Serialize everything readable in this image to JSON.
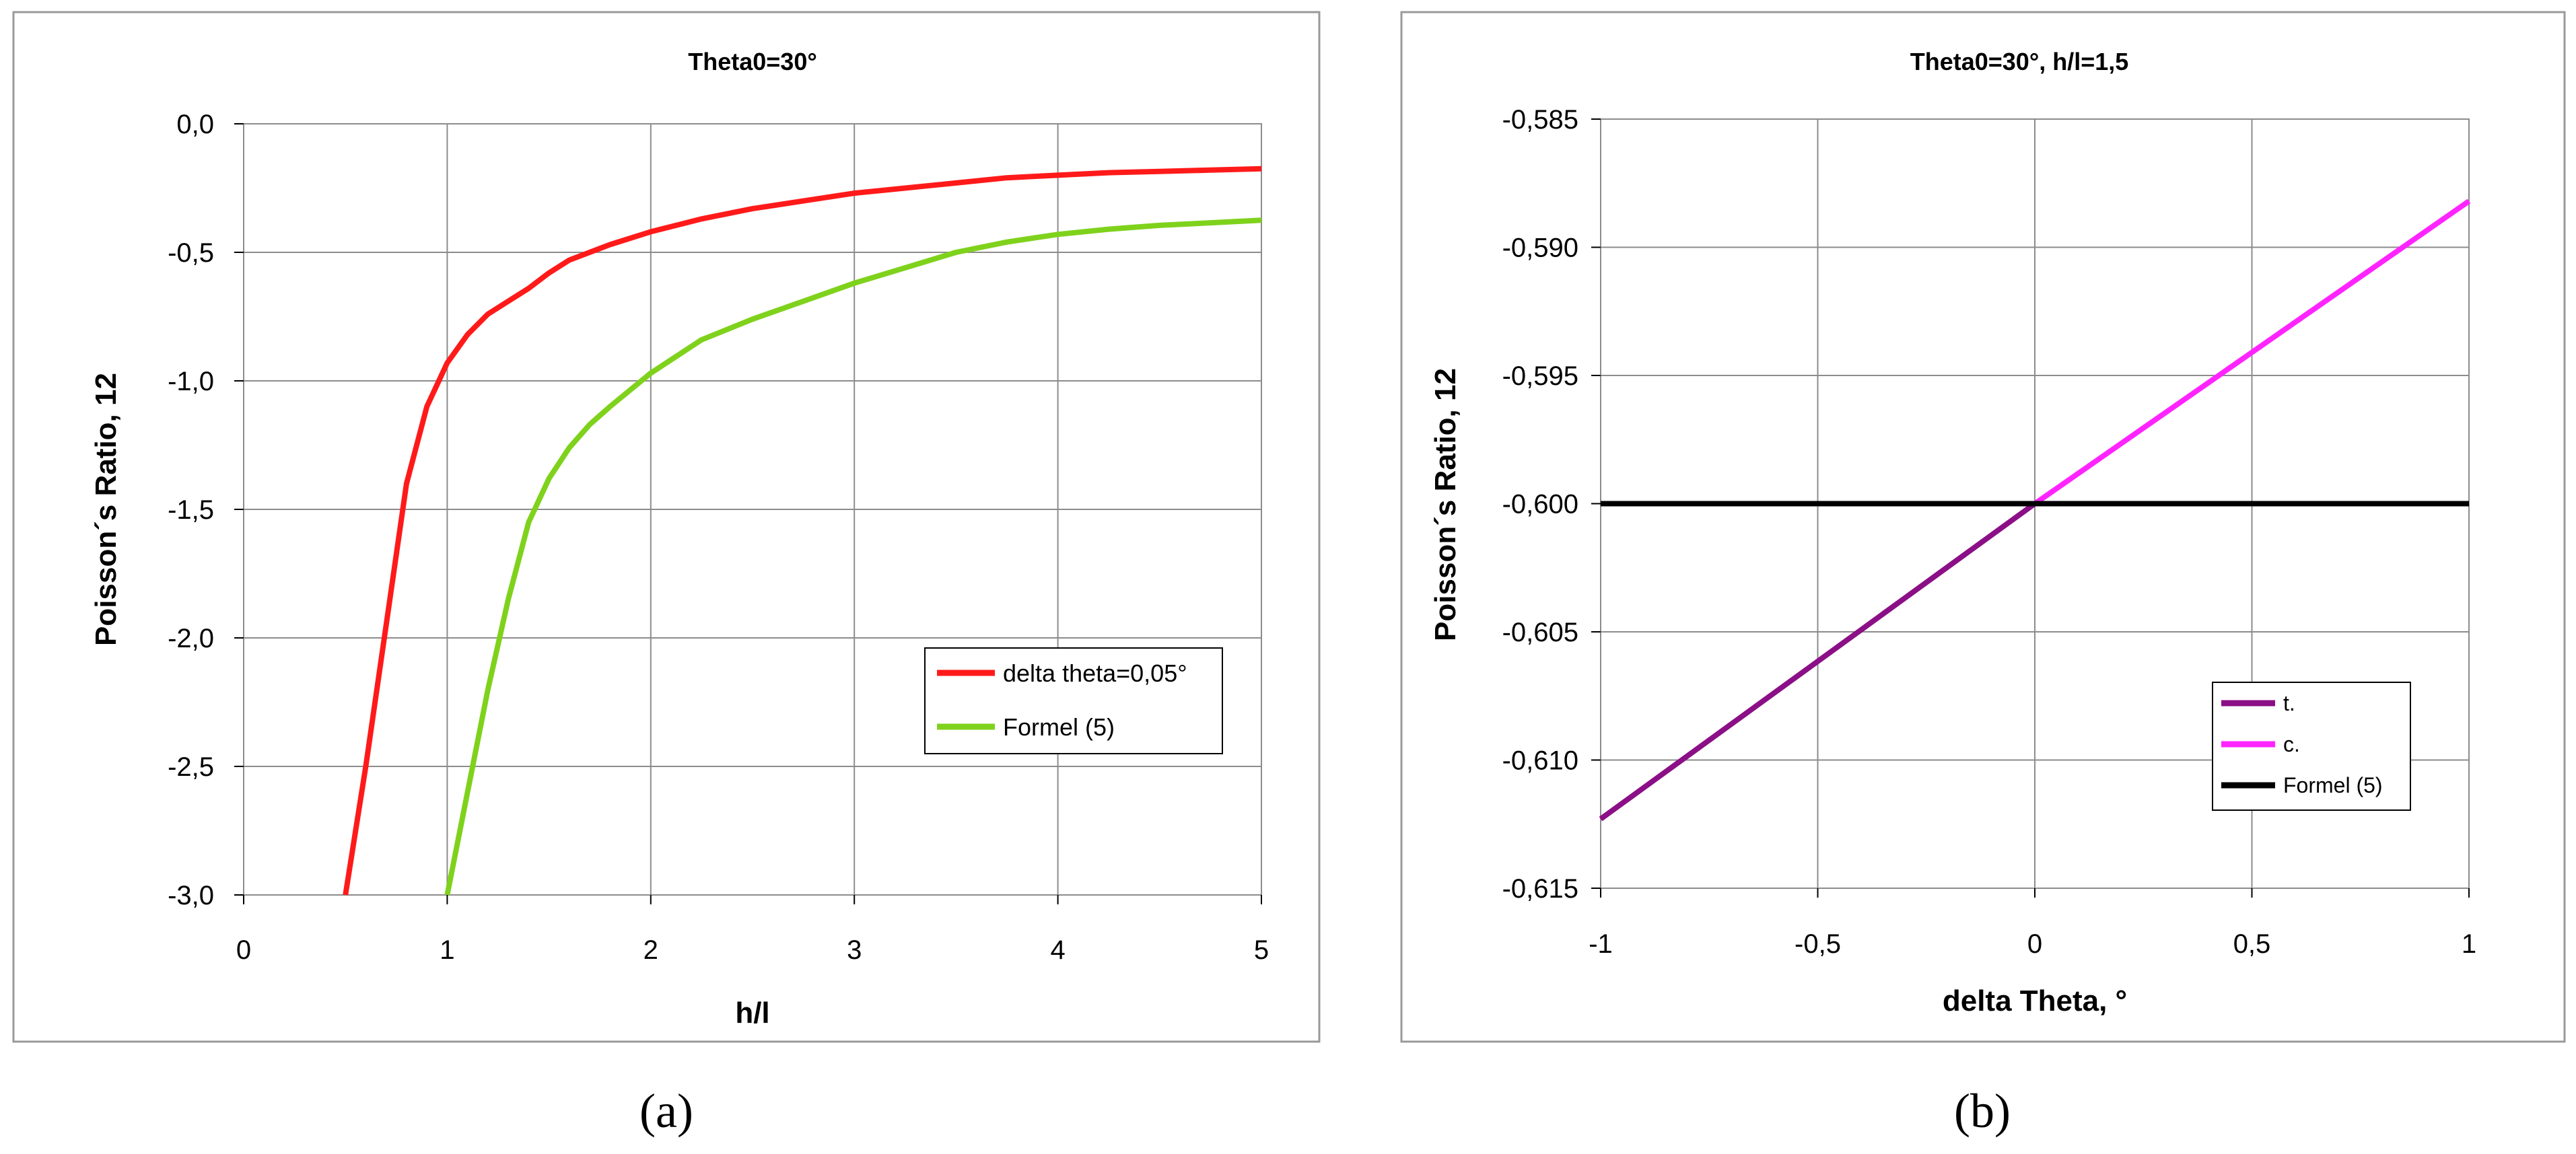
{
  "panels": [
    {
      "label": "(a)",
      "chart_data": {
        "type": "line",
        "title": "Theta0=30°",
        "xlabel": "h/l",
        "ylabel": "Poisson´s Ratio, 12",
        "xlim": [
          0,
          5
        ],
        "ylim": [
          -3.0,
          0.0
        ],
        "xticks": [
          0,
          1,
          2,
          3,
          4,
          5
        ],
        "xtick_labels": [
          "0",
          "1",
          "2",
          "3",
          "4",
          "5"
        ],
        "yticks": [
          0.0,
          -0.5,
          -1.0,
          -1.5,
          -2.0,
          -2.5,
          -3.0
        ],
        "ytick_labels": [
          "0,0",
          "-0,5",
          "-1,0",
          "-1,5",
          "-2,0",
          "-2,5",
          "-3,0"
        ],
        "grid": true,
        "legend_position": "lower-right",
        "series": [
          {
            "name": "delta theta=0,05°",
            "color": "#ff1a1a",
            "x": [
              0.5,
              0.6,
              0.7,
              0.8,
              0.9,
              1.0,
              1.1,
              1.2,
              1.3,
              1.4,
              1.5,
              1.6,
              1.8,
              2.0,
              2.25,
              2.5,
              2.75,
              3.0,
              3.25,
              3.5,
              3.75,
              4.0,
              4.25,
              4.5,
              4.75,
              5.0
            ],
            "y": [
              -3.0,
              -2.5,
              -1.95,
              -1.4,
              -1.1,
              -0.93,
              -0.82,
              -0.74,
              -0.69,
              -0.64,
              -0.58,
              -0.53,
              -0.47,
              -0.42,
              -0.37,
              -0.33,
              -0.3,
              -0.27,
              -0.25,
              -0.23,
              -0.21,
              -0.2,
              -0.19,
              -0.185,
              -0.18,
              -0.175
            ]
          },
          {
            "name": "Formel (5)",
            "color": "#7fd21c",
            "x": [
              1.0,
              1.1,
              1.2,
              1.3,
              1.4,
              1.5,
              1.6,
              1.7,
              1.8,
              2.0,
              2.25,
              2.5,
              2.75,
              3.0,
              3.25,
              3.5,
              3.75,
              4.0,
              4.25,
              4.5,
              4.75,
              5.0
            ],
            "y": [
              -3.0,
              -2.6,
              -2.2,
              -1.85,
              -1.55,
              -1.38,
              -1.26,
              -1.17,
              -1.1,
              -0.97,
              -0.84,
              -0.76,
              -0.69,
              -0.62,
              -0.56,
              -0.5,
              -0.46,
              -0.43,
              -0.41,
              -0.395,
              -0.385,
              -0.375
            ]
          }
        ]
      }
    },
    {
      "label": "(b)",
      "chart_data": {
        "type": "line",
        "title": "Theta0=30°, h/l=1,5",
        "xlabel": "delta Theta, °",
        "ylabel": "Poisson´s Ratio, 12",
        "xlim": [
          -1,
          1
        ],
        "ylim": [
          -0.615,
          -0.585
        ],
        "xticks": [
          -1,
          -0.5,
          0,
          0.5,
          1
        ],
        "xtick_labels": [
          "-1",
          "-0,5",
          "0",
          "0,5",
          "1"
        ],
        "yticks": [
          -0.585,
          -0.59,
          -0.595,
          -0.6,
          -0.605,
          -0.61,
          -0.615
        ],
        "ytick_labels": [
          "-0,585",
          "-0,590",
          "-0,595",
          "-0,600",
          "-0,605",
          "-0,610",
          "-0,615"
        ],
        "grid": true,
        "legend_position": "lower-right",
        "series": [
          {
            "name": "t.",
            "color": "#8b0f86",
            "x": [
              -1.0,
              0.0
            ],
            "y": [
              -0.6123,
              -0.6
            ]
          },
          {
            "name": "c.",
            "color": "#ff24ff",
            "x": [
              0.0,
              1.0
            ],
            "y": [
              -0.6,
              -0.5882
            ]
          },
          {
            "name": "Formel (5)",
            "color": "#000000",
            "x": [
              -1.0,
              1.0
            ],
            "y": [
              -0.6,
              -0.6
            ]
          }
        ]
      }
    }
  ]
}
